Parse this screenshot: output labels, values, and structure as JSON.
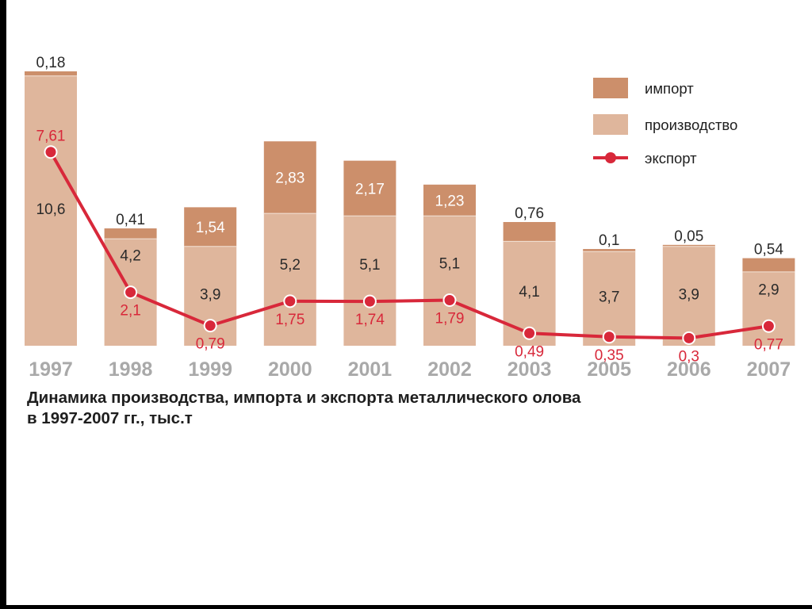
{
  "caption": {
    "line1": "Динамика производства, импорта и экспорта металлического олова",
    "line2": "в 1997-2007 гг., тыс.т"
  },
  "colors": {
    "import": "#cc8f6b",
    "production": "#dfb69c",
    "export": "#d8283a",
    "year_label": "#a9a9a9",
    "value_label": "#2a2a2a",
    "background": "#ffffff",
    "frame": "#000000"
  },
  "chart_data": {
    "type": "bar",
    "stacked": true,
    "categories": [
      "1997",
      "1998",
      "1999",
      "2000",
      "2001",
      "2002",
      "2003",
      "2005",
      "2006",
      "2007"
    ],
    "series": [
      {
        "name": "производство",
        "type": "bar",
        "values": [
          10.6,
          4.2,
          3.9,
          5.2,
          5.1,
          5.1,
          4.1,
          3.7,
          3.9,
          2.9
        ]
      },
      {
        "name": "импорт",
        "type": "bar",
        "values": [
          0.18,
          0.41,
          1.54,
          2.83,
          2.17,
          1.23,
          0.76,
          0.1,
          0.05,
          0.54
        ]
      },
      {
        "name": "экспорт",
        "type": "line",
        "values": [
          7.61,
          2.1,
          0.79,
          1.75,
          1.74,
          1.79,
          0.49,
          0.35,
          0.3,
          0.77
        ]
      }
    ],
    "labels": {
      "production": [
        "10,6",
        "4,2",
        "3,9",
        "5,2",
        "5,1",
        "5,1",
        "4,1",
        "3,7",
        "3,9",
        "2,9"
      ],
      "import": [
        "0,18",
        "0,41",
        "1,54",
        "2,83",
        "2,17",
        "1,23",
        "0,76",
        "0,1",
        "0,05",
        "0,54"
      ],
      "export": [
        "7,61",
        "2,1",
        "0,79",
        "1,75",
        "1,74",
        "1,79",
        "0,49",
        "0,35",
        "0,3",
        "0,77"
      ]
    },
    "legend": {
      "position": "top-right",
      "items": [
        {
          "key": "import",
          "label": "импорт"
        },
        {
          "key": "production",
          "label": "производство"
        },
        {
          "key": "export",
          "label": "экспорт"
        }
      ]
    },
    "grid": false,
    "title": "Динамика производства, импорта и экспорта металлического олова в 1997-2007 гг., тыс.т",
    "xlabel": "",
    "ylabel": ""
  }
}
